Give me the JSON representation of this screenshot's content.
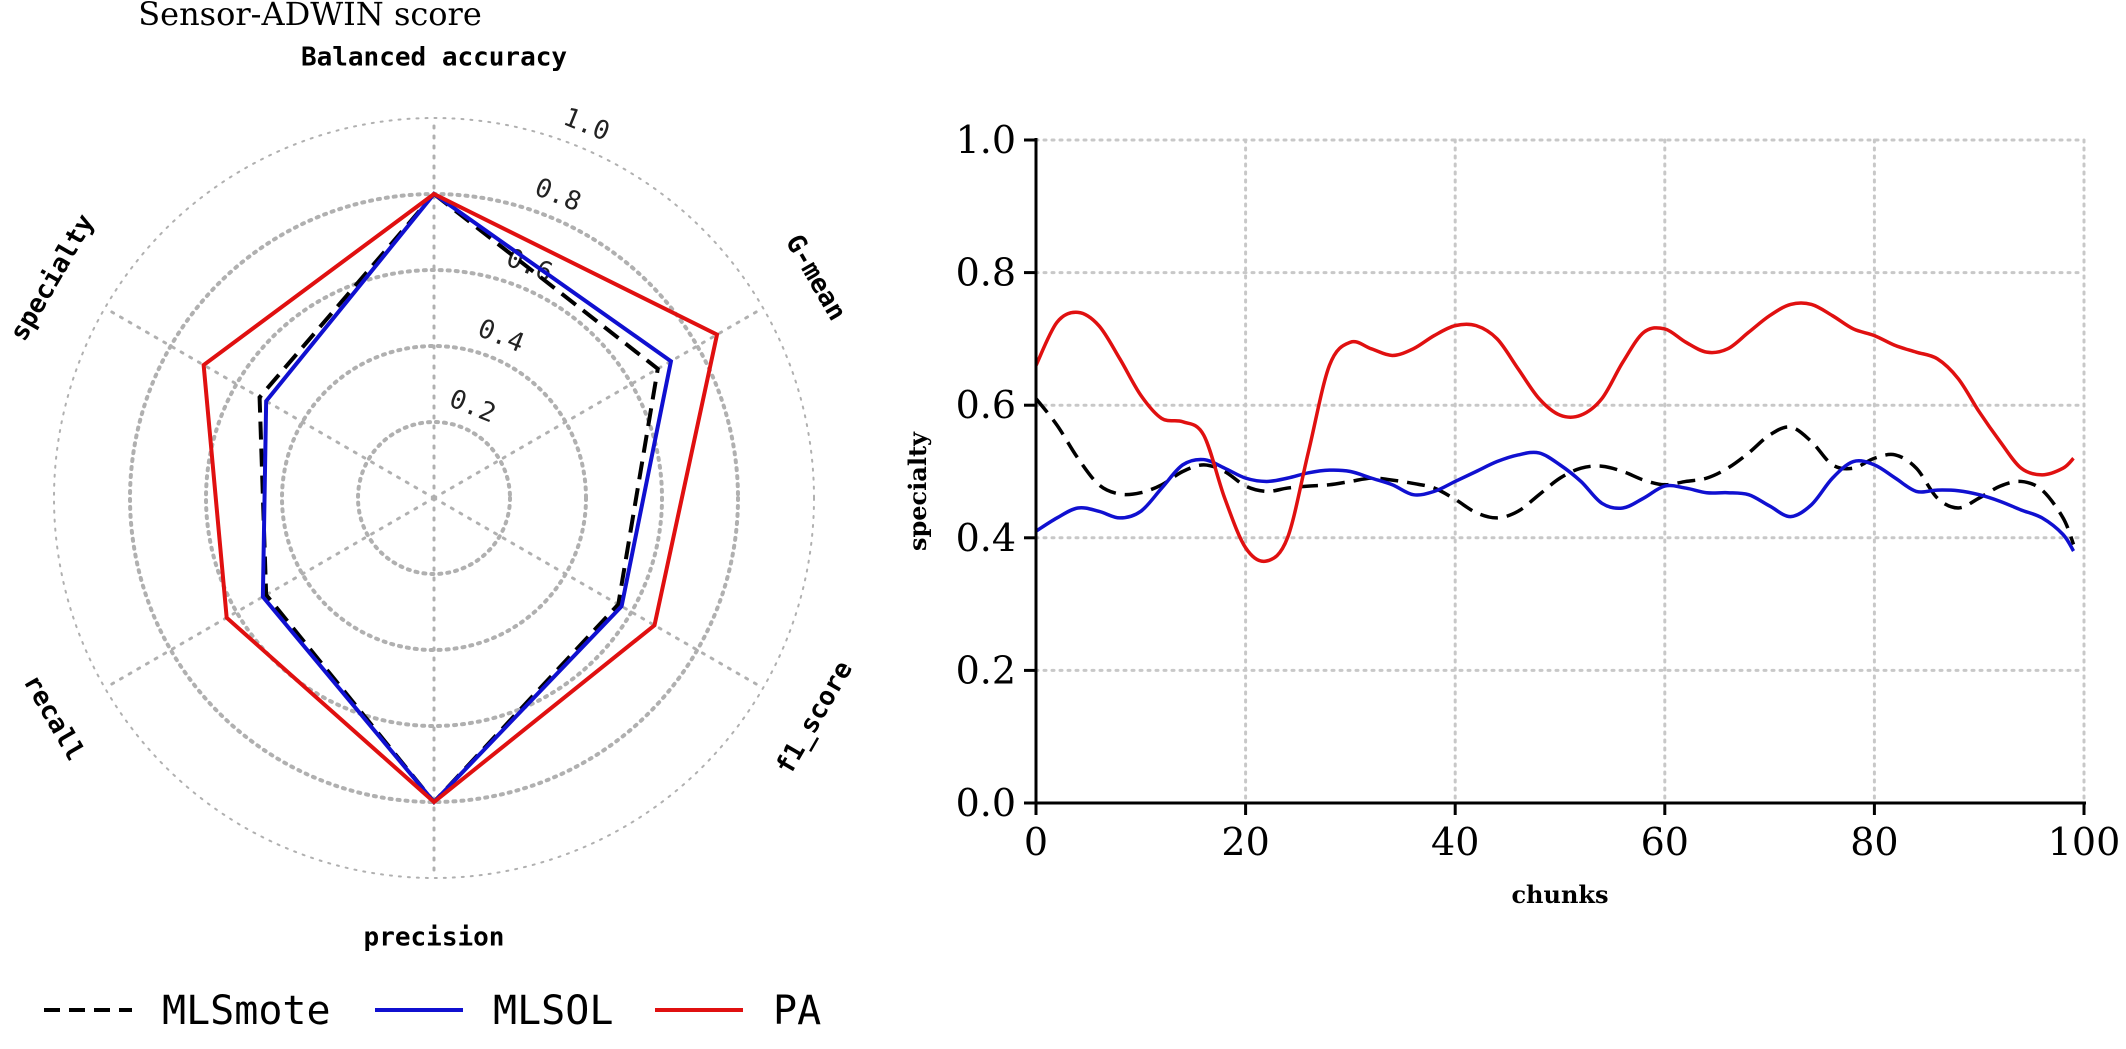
{
  "figure_title": "Sensor-ADWIN score",
  "legend": [
    {
      "label": "MLSmote",
      "color": "#000000",
      "dash": "dashed"
    },
    {
      "label": "MLSOL",
      "color": "#1010d0",
      "dash": "solid"
    },
    {
      "label": "PA",
      "color": "#e01010",
      "dash": "solid"
    }
  ],
  "chart_data": [
    {
      "type": "radar",
      "axes": [
        "Balanced accuracy",
        "G-mean",
        "f1_score",
        "precision",
        "recall",
        "specialty"
      ],
      "rticks": [
        0.2,
        0.4,
        0.6,
        0.8,
        1.0
      ],
      "rtick_labels": [
        "0.2",
        "0.4",
        "0.6",
        "0.8",
        "1.0"
      ],
      "rlim": [
        0,
        1.0
      ],
      "grid": true,
      "series": [
        {
          "name": "MLSmote",
          "values": [
            0.8,
            0.68,
            0.56,
            0.8,
            0.51,
            0.53
          ]
        },
        {
          "name": "MLSOL",
          "values": [
            0.8,
            0.72,
            0.57,
            0.8,
            0.52,
            0.51
          ]
        },
        {
          "name": "PA",
          "values": [
            0.8,
            0.86,
            0.67,
            0.8,
            0.63,
            0.7
          ]
        }
      ]
    },
    {
      "type": "line",
      "xlabel": "chunks",
      "ylabel": "specialty",
      "xlim": [
        0,
        100
      ],
      "ylim": [
        0.0,
        1.0
      ],
      "xticks": [
        "0",
        "20",
        "40",
        "60",
        "80",
        "100"
      ],
      "yticks": [
        "0.0",
        "0.2",
        "0.4",
        "0.6",
        "0.8",
        "1.0"
      ],
      "grid": true,
      "series": [
        {
          "name": "MLSmote",
          "x": [
            0,
            2,
            4,
            6,
            8,
            10,
            12,
            14,
            16,
            18,
            20,
            22,
            24,
            26,
            28,
            30,
            32,
            34,
            36,
            38,
            40,
            42,
            44,
            46,
            48,
            50,
            52,
            54,
            56,
            58,
            60,
            62,
            64,
            66,
            68,
            70,
            72,
            74,
            76,
            78,
            80,
            82,
            84,
            86,
            88,
            90,
            92,
            94,
            96,
            98,
            99
          ],
          "y": [
            0.61,
            0.57,
            0.52,
            0.48,
            0.466,
            0.468,
            0.48,
            0.5,
            0.51,
            0.5,
            0.478,
            0.47,
            0.475,
            0.478,
            0.48,
            0.485,
            0.49,
            0.487,
            0.482,
            0.475,
            0.458,
            0.438,
            0.43,
            0.44,
            0.465,
            0.49,
            0.505,
            0.508,
            0.5,
            0.487,
            0.48,
            0.485,
            0.49,
            0.505,
            0.528,
            0.555,
            0.567,
            0.545,
            0.51,
            0.505,
            0.52,
            0.525,
            0.505,
            0.46,
            0.445,
            0.46,
            0.478,
            0.485,
            0.472,
            0.43,
            0.39
          ]
        },
        {
          "name": "MLSOL",
          "x": [
            0,
            2,
            4,
            6,
            8,
            10,
            12,
            14,
            16,
            18,
            20,
            22,
            24,
            26,
            28,
            30,
            32,
            34,
            36,
            38,
            40,
            42,
            44,
            46,
            48,
            50,
            52,
            54,
            56,
            58,
            60,
            62,
            64,
            66,
            68,
            70,
            72,
            74,
            76,
            78,
            80,
            82,
            84,
            86,
            88,
            90,
            92,
            94,
            96,
            98,
            99
          ],
          "y": [
            0.41,
            0.43,
            0.445,
            0.44,
            0.43,
            0.44,
            0.475,
            0.51,
            0.518,
            0.505,
            0.49,
            0.485,
            0.49,
            0.498,
            0.502,
            0.5,
            0.49,
            0.48,
            0.465,
            0.47,
            0.485,
            0.5,
            0.515,
            0.525,
            0.528,
            0.51,
            0.485,
            0.452,
            0.445,
            0.46,
            0.478,
            0.475,
            0.468,
            0.468,
            0.465,
            0.448,
            0.432,
            0.45,
            0.49,
            0.515,
            0.51,
            0.49,
            0.47,
            0.472,
            0.471,
            0.465,
            0.455,
            0.442,
            0.43,
            0.405,
            0.38
          ]
        },
        {
          "name": "PA",
          "x": [
            0,
            2,
            4,
            6,
            8,
            10,
            12,
            14,
            16,
            18,
            20,
            22,
            24,
            26,
            28,
            30,
            32,
            34,
            36,
            38,
            40,
            42,
            44,
            46,
            48,
            50,
            52,
            54,
            56,
            58,
            60,
            62,
            64,
            66,
            68,
            70,
            72,
            74,
            76,
            78,
            80,
            82,
            84,
            86,
            88,
            90,
            92,
            94,
            96,
            98,
            99
          ],
          "y": [
            0.66,
            0.725,
            0.74,
            0.72,
            0.67,
            0.615,
            0.58,
            0.575,
            0.555,
            0.46,
            0.385,
            0.365,
            0.4,
            0.53,
            0.66,
            0.695,
            0.685,
            0.675,
            0.685,
            0.705,
            0.72,
            0.72,
            0.7,
            0.655,
            0.61,
            0.585,
            0.585,
            0.61,
            0.665,
            0.71,
            0.715,
            0.695,
            0.68,
            0.685,
            0.71,
            0.735,
            0.752,
            0.752,
            0.735,
            0.715,
            0.705,
            0.69,
            0.68,
            0.67,
            0.64,
            0.59,
            0.545,
            0.505,
            0.495,
            0.505,
            0.52
          ]
        }
      ]
    }
  ]
}
